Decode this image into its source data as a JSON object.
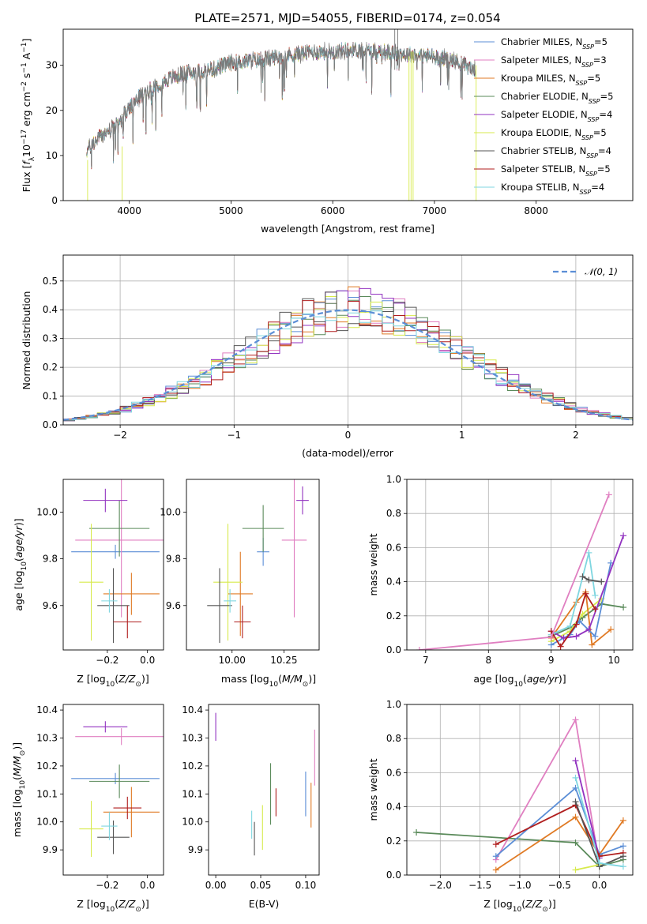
{
  "title": "PLATE=2571, MJD=54055, FIBERID=0174, z=0.054",
  "colors": {
    "chabrier_miles": "#5b8ed6",
    "salpeter_miles": "#e07fc1",
    "kroupa_miles": "#e07a24",
    "chabrier_elodie": "#5a8a5a",
    "salpeter_elodie": "#9233c0",
    "kroupa_elodie": "#d7ea4c",
    "chabrier_stelib": "#555555",
    "salpeter_stelib": "#b01e1e",
    "kroupa_stelib": "#7fd6e0",
    "normal": "#5b8ed6"
  },
  "chart_data": [
    {
      "id": "spectrum",
      "type": "line",
      "xlabel": "wavelength [Angstrom, rest frame]",
      "ylabel": "Flux [f_λ 10^-17 erg cm^-2 s^-1 A^-1]",
      "xlim": [
        3350,
        8950
      ],
      "ylim": [
        0,
        38
      ],
      "xticks": [
        "4000",
        "5000",
        "6000",
        "7000",
        "8000"
      ],
      "yticks": [
        "0",
        "10",
        "20",
        "30"
      ],
      "legend_position": "upper-right",
      "continuum": {
        "x": [
          3580,
          3700,
          3900,
          3950,
          4100,
          4300,
          4500,
          4800,
          5000,
          5200,
          5500,
          5800,
          6000,
          6200,
          6500,
          6700,
          7000,
          7200,
          7400
        ],
        "y": [
          11,
          14,
          17,
          19,
          23,
          26,
          28,
          29,
          30.5,
          31,
          32,
          33,
          33,
          33.5,
          33,
          32.5,
          32,
          31,
          29
        ]
      },
      "series": [
        {
          "name": "Chabrier MILES, N_SSP=5",
          "color_key": "chabrier_miles"
        },
        {
          "name": "Salpeter MILES, N_SSP=3",
          "color_key": "salpeter_miles"
        },
        {
          "name": "Kroupa MILES, N_SSP=5",
          "color_key": "kroupa_miles"
        },
        {
          "name": "Chabrier ELODIE, N_SSP=5",
          "color_key": "chabrier_elodie"
        },
        {
          "name": "Salpeter ELODIE, N_SSP=4",
          "color_key": "salpeter_elodie"
        },
        {
          "name": "Kroupa ELODIE, N_SSP=5",
          "color_key": "kroupa_elodie"
        },
        {
          "name": "Chabrier STELIB, N_SSP=4",
          "color_key": "chabrier_stelib"
        },
        {
          "name": "Salpeter STELIB, N_SSP=5",
          "color_key": "salpeter_stelib"
        },
        {
          "name": "Kroupa STELIB, N_SSP=4",
          "color_key": "kroupa_stelib"
        }
      ]
    },
    {
      "id": "residuals",
      "type": "histogram",
      "xlabel": "(data-model)/error",
      "ylabel": "Normed distribution",
      "xlim": [
        -2.5,
        2.5
      ],
      "ylim": [
        0,
        0.59
      ],
      "xticks": [
        "−2",
        "−1",
        "0",
        "1",
        "2"
      ],
      "yticks": [
        "0.0",
        "0.1",
        "0.2",
        "0.3",
        "0.4",
        "0.5"
      ],
      "grid": true,
      "legend": "𝒩(0, 1)",
      "legend_position": "upper-right",
      "bin_width": 0.1,
      "bin_start": -2.5,
      "gaussian_mean": 0,
      "gaussian_sigma": 1,
      "base_heights": [
        0.017,
        0.022,
        0.028,
        0.036,
        0.045,
        0.055,
        0.067,
        0.081,
        0.096,
        0.113,
        0.13,
        0.15,
        0.17,
        0.192,
        0.214,
        0.237,
        0.26,
        0.283,
        0.306,
        0.329,
        0.35,
        0.369,
        0.385,
        0.397,
        0.402,
        0.405,
        0.402,
        0.396,
        0.388,
        0.37,
        0.352,
        0.331,
        0.309,
        0.286,
        0.262,
        0.238,
        0.214,
        0.191,
        0.168,
        0.147,
        0.128,
        0.11,
        0.094,
        0.08,
        0.066,
        0.055,
        0.044,
        0.036,
        0.028,
        0.022
      ]
    },
    {
      "id": "age_vs_Z",
      "type": "scatter",
      "xlabel": "Z [log10(Z/Z⊙)]",
      "ylabel": "age  [log10(age/yr)]",
      "xlim": [
        -0.42,
        0.08
      ],
      "ylim": [
        9.41,
        10.14
      ],
      "xticks": [
        "−0.2",
        "0.0"
      ],
      "yticks": [
        "9.6",
        "9.8",
        "10.0"
      ],
      "points": [
        {
          "x": -0.16,
          "y": 9.83,
          "xerr": 0.22,
          "yerr": 0.03,
          "color_key": "chabrier_miles"
        },
        {
          "x": -0.13,
          "y": 9.88,
          "xerr": 0.23,
          "yerr": 0.33,
          "color_key": "salpeter_miles"
        },
        {
          "x": -0.08,
          "y": 9.65,
          "xerr": 0.14,
          "yerr": 0.09,
          "color_key": "kroupa_miles"
        },
        {
          "x": -0.14,
          "y": 9.93,
          "xerr": 0.15,
          "yerr": 0.12,
          "color_key": "chabrier_elodie"
        },
        {
          "x": -0.21,
          "y": 10.05,
          "xerr": 0.11,
          "yerr": 0.05,
          "color_key": "salpeter_elodie"
        },
        {
          "x": -0.28,
          "y": 9.7,
          "xerr": 0.06,
          "yerr": 0.25,
          "color_key": "kroupa_elodie"
        },
        {
          "x": -0.17,
          "y": 9.6,
          "xerr": 0.08,
          "yerr": 0.16,
          "color_key": "chabrier_stelib"
        },
        {
          "x": -0.1,
          "y": 9.53,
          "xerr": 0.07,
          "yerr": 0.07,
          "color_key": "salpeter_stelib"
        },
        {
          "x": -0.19,
          "y": 9.62,
          "xerr": 0.04,
          "yerr": 0.05,
          "color_key": "kroupa_stelib"
        }
      ]
    },
    {
      "id": "age_vs_mass",
      "type": "scatter",
      "xlabel": "mass [log10(M/M⊙)]",
      "ylabel": "",
      "xlim": [
        9.78,
        10.42
      ],
      "ylim": [
        9.41,
        10.14
      ],
      "xticks": [
        "10.00",
        "10.25"
      ],
      "yticks": [
        "9.6",
        "9.8",
        "10.0"
      ],
      "points": [
        {
          "x": 10.15,
          "y": 9.83,
          "xerr": 0.03,
          "yerr": 0.06,
          "color_key": "chabrier_miles"
        },
        {
          "x": 10.3,
          "y": 9.88,
          "xerr": 0.06,
          "yerr": 0.33,
          "color_key": "salpeter_miles"
        },
        {
          "x": 10.04,
          "y": 9.65,
          "xerr": 0.06,
          "yerr": 0.18,
          "color_key": "kroupa_miles"
        },
        {
          "x": 10.15,
          "y": 9.93,
          "xerr": 0.1,
          "yerr": 0.1,
          "color_key": "chabrier_elodie"
        },
        {
          "x": 10.34,
          "y": 10.05,
          "xerr": 0.03,
          "yerr": 0.06,
          "color_key": "salpeter_elodie"
        },
        {
          "x": 9.98,
          "y": 9.7,
          "xerr": 0.07,
          "yerr": 0.25,
          "color_key": "kroupa_elodie"
        },
        {
          "x": 9.94,
          "y": 9.6,
          "xerr": 0.06,
          "yerr": 0.16,
          "color_key": "chabrier_stelib"
        },
        {
          "x": 10.05,
          "y": 9.53,
          "xerr": 0.04,
          "yerr": 0.07,
          "color_key": "salpeter_stelib"
        },
        {
          "x": 9.99,
          "y": 9.62,
          "xerr": 0.03,
          "yerr": 0.05,
          "color_key": "kroupa_stelib"
        }
      ]
    },
    {
      "id": "weight_vs_age",
      "type": "line",
      "xlabel": "age  [log10(age/yr)]",
      "ylabel": "mass weight",
      "xlim": [
        6.7,
        10.3
      ],
      "ylim": [
        0,
        1.0
      ],
      "xticks": [
        "7",
        "8",
        "9",
        "10"
      ],
      "yticks": [
        "0.0",
        "0.2",
        "0.4",
        "0.6",
        "0.8",
        "1.0"
      ],
      "grid": true,
      "series": [
        {
          "color_key": "chabrier_elodie",
          "x": [
            9.0,
            9.3,
            9.5,
            9.8,
            10.15
          ],
          "y": [
            0.08,
            0.13,
            0.19,
            0.27,
            0.25
          ]
        },
        {
          "color_key": "kroupa_elodie",
          "x": [
            9.0,
            9.3,
            9.5,
            9.8
          ],
          "y": [
            0.05,
            0.11,
            0.21,
            0.3
          ]
        },
        {
          "color_key": "kroupa_miles",
          "x": [
            9.0,
            9.4,
            9.55,
            9.65,
            9.95
          ],
          "y": [
            0.07,
            0.28,
            0.34,
            0.03,
            0.12
          ]
        },
        {
          "color_key": "chabrier_miles",
          "x": [
            9.0,
            9.3,
            9.45,
            9.7,
            9.95
          ],
          "y": [
            0.03,
            0.09,
            0.17,
            0.08,
            0.51
          ]
        },
        {
          "color_key": "salpeter_elodie",
          "x": [
            9.0,
            9.2,
            9.4,
            9.6,
            10.15
          ],
          "y": [
            0.11,
            0.07,
            0.08,
            0.12,
            0.67
          ]
        },
        {
          "color_key": "kroupa_stelib",
          "x": [
            9.0,
            9.3,
            9.6,
            9.7
          ],
          "y": [
            0.09,
            0.14,
            0.57,
            0.32
          ]
        },
        {
          "color_key": "salpeter_stelib",
          "x": [
            9.0,
            9.15,
            9.4,
            9.55,
            9.7
          ],
          "y": [
            0.11,
            0.02,
            0.15,
            0.33,
            0.24
          ]
        },
        {
          "color_key": "chabrier_stelib",
          "x": [
            9.5,
            9.6,
            9.8
          ],
          "y": [
            0.43,
            0.41,
            0.4
          ]
        },
        {
          "color_key": "salpeter_miles",
          "x": [
            6.9,
            9.0,
            9.92
          ],
          "y": [
            0.0,
            0.075,
            0.91
          ]
        }
      ]
    },
    {
      "id": "mass_vs_Z",
      "type": "scatter",
      "xlabel": "Z [log10(Z/Z⊙)]",
      "ylabel": "mass [log10(M/M⊙)]",
      "xlim": [
        -0.42,
        0.08
      ],
      "ylim": [
        9.81,
        10.42
      ],
      "xticks": [
        "−0.2",
        "0.0"
      ],
      "yticks": [
        "9.9",
        "10.0",
        "10.1",
        "10.2",
        "10.3",
        "10.4"
      ],
      "points": [
        {
          "x": -0.16,
          "y": 10.155,
          "xerr": 0.22,
          "yerr": 0.02,
          "color_key": "chabrier_miles"
        },
        {
          "x": -0.13,
          "y": 10.305,
          "xerr": 0.23,
          "yerr": 0.03,
          "color_key": "salpeter_miles"
        },
        {
          "x": -0.08,
          "y": 10.035,
          "xerr": 0.14,
          "yerr": 0.09,
          "color_key": "kroupa_miles"
        },
        {
          "x": -0.14,
          "y": 10.145,
          "xerr": 0.15,
          "yerr": 0.06,
          "color_key": "chabrier_elodie"
        },
        {
          "x": -0.21,
          "y": 10.34,
          "xerr": 0.11,
          "yerr": 0.02,
          "color_key": "salpeter_elodie"
        },
        {
          "x": -0.28,
          "y": 9.975,
          "xerr": 0.06,
          "yerr": 0.1,
          "color_key": "kroupa_elodie"
        },
        {
          "x": -0.17,
          "y": 9.945,
          "xerr": 0.08,
          "yerr": 0.06,
          "color_key": "chabrier_stelib"
        },
        {
          "x": -0.1,
          "y": 10.05,
          "xerr": 0.07,
          "yerr": 0.04,
          "color_key": "salpeter_stelib"
        },
        {
          "x": -0.19,
          "y": 9.985,
          "xerr": 0.04,
          "yerr": 0.05,
          "color_key": "kroupa_stelib"
        }
      ]
    },
    {
      "id": "mass_vs_ebv",
      "type": "scatter",
      "xlabel": "E(B-V)",
      "ylabel": "",
      "xlim": [
        -0.008,
        0.115
      ],
      "ylim": [
        9.81,
        10.42
      ],
      "xticks": [
        "0.00",
        "0.05",
        "0.10"
      ],
      "yticks": [
        "9.9",
        "10.0",
        "10.1",
        "10.2",
        "10.3",
        "10.4"
      ],
      "points": [
        {
          "x": 0.1,
          "y": 10.1,
          "yerr": 0.08,
          "color_key": "chabrier_miles"
        },
        {
          "x": 0.11,
          "y": 10.23,
          "yerr": 0.1,
          "color_key": "salpeter_miles"
        },
        {
          "x": 0.106,
          "y": 10.06,
          "yerr": 0.08,
          "color_key": "kroupa_miles"
        },
        {
          "x": 0.061,
          "y": 10.1,
          "yerr": 0.11,
          "color_key": "chabrier_elodie"
        },
        {
          "x": 0.0,
          "y": 10.34,
          "yerr": 0.05,
          "color_key": "salpeter_elodie"
        },
        {
          "x": 0.052,
          "y": 9.98,
          "yerr": 0.08,
          "color_key": "kroupa_elodie"
        },
        {
          "x": 0.043,
          "y": 9.94,
          "yerr": 0.06,
          "color_key": "chabrier_stelib"
        },
        {
          "x": 0.067,
          "y": 10.07,
          "yerr": 0.05,
          "color_key": "salpeter_stelib"
        },
        {
          "x": 0.04,
          "y": 9.99,
          "yerr": 0.05,
          "color_key": "kroupa_stelib"
        }
      ]
    },
    {
      "id": "weight_vs_Z",
      "type": "line",
      "xlabel": "Z [log10(Z/Z⊙)]",
      "ylabel": "mass weight",
      "xlim": [
        -2.42,
        0.42
      ],
      "ylim": [
        0,
        1.0
      ],
      "xticks": [
        "−2.0",
        "−1.5",
        "−1.0",
        "−0.5",
        "0.0"
      ],
      "yticks": [
        "0.0",
        "0.2",
        "0.4",
        "0.6",
        "0.8",
        "1.0"
      ],
      "grid": true,
      "series": [
        {
          "color_key": "chabrier_elodie",
          "x": [
            -2.3,
            -0.3,
            0.0,
            0.3
          ],
          "y": [
            0.25,
            0.19,
            0.05,
            0.09
          ]
        },
        {
          "color_key": "kroupa_miles",
          "x": [
            -1.3,
            -0.3,
            0.0,
            0.3
          ],
          "y": [
            0.03,
            0.34,
            0.12,
            0.32
          ]
        },
        {
          "color_key": "salpeter_miles",
          "x": [
            -1.3,
            -0.3,
            0.0
          ],
          "y": [
            0.09,
            0.91,
            0.06
          ]
        },
        {
          "color_key": "chabrier_miles",
          "x": [
            -1.3,
            -0.3,
            0.0,
            0.3
          ],
          "y": [
            0.11,
            0.51,
            0.12,
            0.17
          ]
        },
        {
          "color_key": "kroupa_elodie",
          "x": [
            -0.3,
            0.0
          ],
          "y": [
            0.03,
            0.06
          ]
        },
        {
          "color_key": "salpeter_elodie",
          "x": [
            -0.3,
            0.0
          ],
          "y": [
            0.67,
            0.1
          ]
        },
        {
          "color_key": "salpeter_stelib",
          "x": [
            -1.3,
            -0.3,
            0.0,
            0.3
          ],
          "y": [
            0.18,
            0.41,
            0.11,
            0.13
          ]
        },
        {
          "color_key": "chabrier_stelib",
          "x": [
            -0.3,
            0.0,
            0.3
          ],
          "y": [
            0.43,
            0.05,
            0.11
          ]
        },
        {
          "color_key": "kroupa_stelib",
          "x": [
            -0.3,
            0.0,
            0.3
          ],
          "y": [
            0.57,
            0.07,
            0.05
          ]
        }
      ]
    }
  ]
}
